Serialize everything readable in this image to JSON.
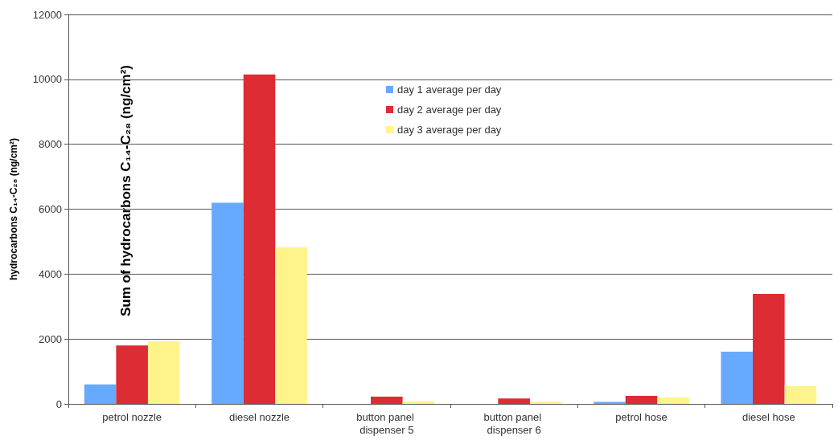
{
  "chart_data": {
    "type": "bar",
    "ylabel": "hydrocarbons C₁₄-C₂₈ (ng/cm²)",
    "annotations": [
      "Sum of hydrocarbons C₁₄-C₂₈ (ng/cm²)"
    ],
    "categories": [
      "petrol nozzle",
      "diesel nozzle",
      "button panel dispenser 5",
      "button panel dispenser 6",
      "petrol hose",
      "diesel hose"
    ],
    "series": [
      {
        "name": "day 1 average per day",
        "color": "#66aaff",
        "values": [
          600,
          6200,
          null,
          null,
          60,
          1610
        ]
      },
      {
        "name": "day 2 average per day",
        "color": "#dd2c33",
        "values": [
          1800,
          10150,
          220,
          170,
          250,
          3390
        ]
      },
      {
        "name": "day 3 average per day",
        "color": "#fff38c",
        "values": [
          1930,
          4830,
          80,
          70,
          200,
          550
        ]
      }
    ],
    "ylim": [
      0,
      12000
    ],
    "yticks": [
      0,
      2000,
      4000,
      6000,
      8000,
      10000,
      12000
    ],
    "grid": "y",
    "legend": "top"
  }
}
